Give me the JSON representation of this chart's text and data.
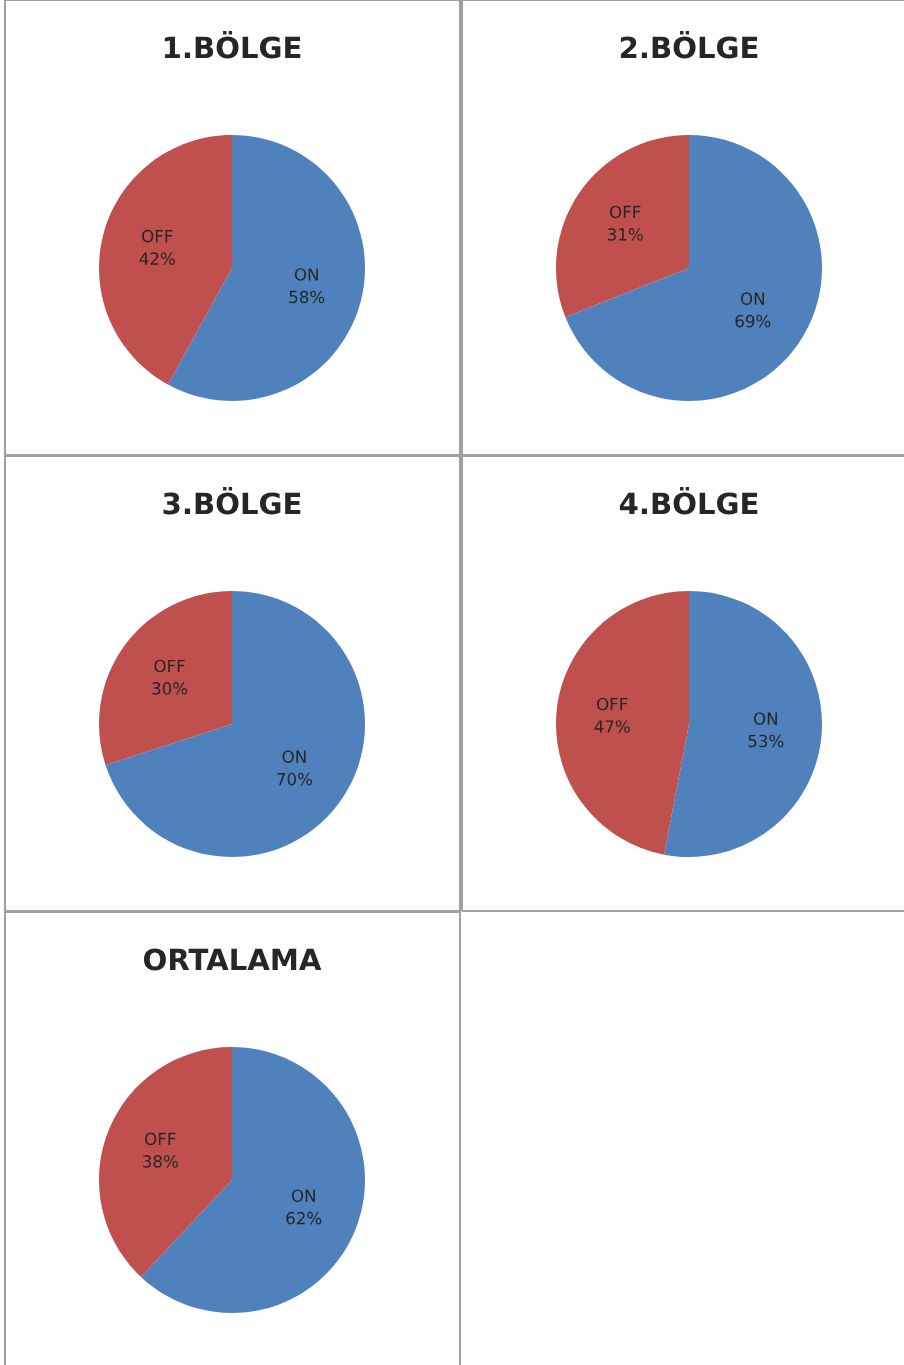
{
  "chart_data": [
    {
      "type": "pie",
      "title": "1.BÖLGE",
      "categories": [
        "ON",
        "OFF"
      ],
      "values": [
        58,
        42
      ],
      "colors": [
        "#4f81bd",
        "#c0504d"
      ],
      "value_labels": [
        "58%",
        "42%"
      ]
    },
    {
      "type": "pie",
      "title": "2.BÖLGE",
      "categories": [
        "ON",
        "OFF"
      ],
      "values": [
        69,
        31
      ],
      "colors": [
        "#4f81bd",
        "#c0504d"
      ],
      "value_labels": [
        "69%",
        "31%"
      ]
    },
    {
      "type": "pie",
      "title": "3.BÖLGE",
      "categories": [
        "ON",
        "OFF"
      ],
      "values": [
        70,
        30
      ],
      "colors": [
        "#4f81bd",
        "#c0504d"
      ],
      "value_labels": [
        "70%",
        "30%"
      ]
    },
    {
      "type": "pie",
      "title": "4.BÖLGE",
      "categories": [
        "ON",
        "OFF"
      ],
      "values": [
        53,
        47
      ],
      "colors": [
        "#4f81bd",
        "#c0504d"
      ],
      "value_labels": [
        "53%",
        "47%"
      ]
    },
    {
      "type": "pie",
      "title": "ORTALAMA",
      "categories": [
        "ON",
        "OFF"
      ],
      "values": [
        62,
        38
      ],
      "colors": [
        "#4f81bd",
        "#c0504d"
      ],
      "value_labels": [
        "62%",
        "38%"
      ]
    }
  ]
}
